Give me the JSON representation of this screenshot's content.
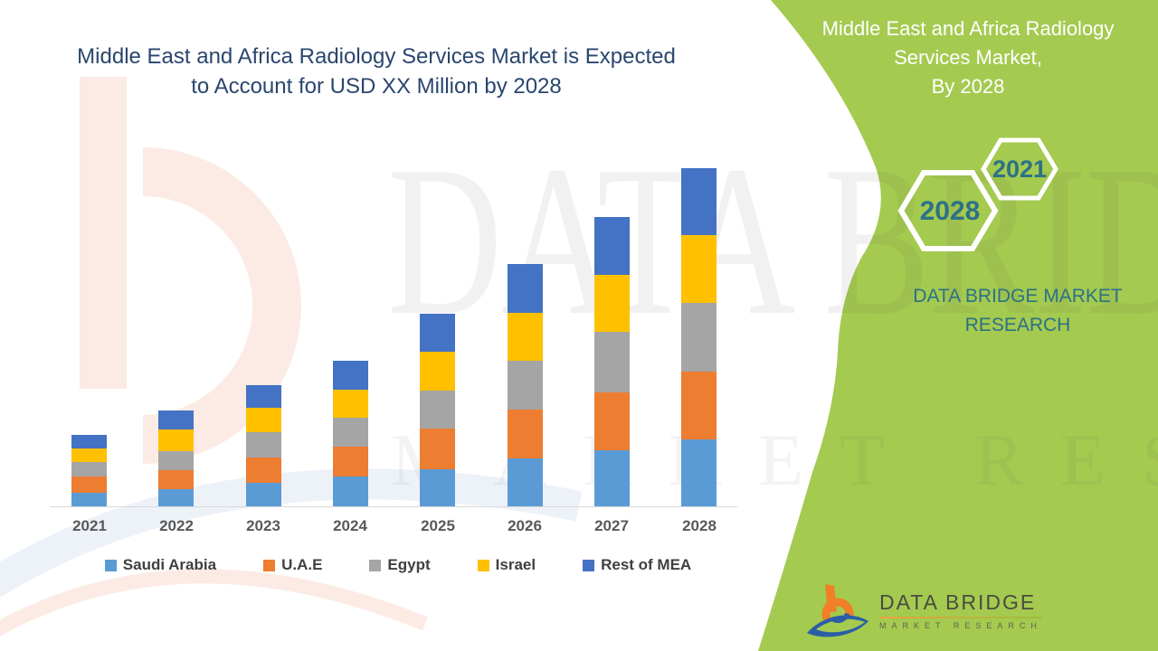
{
  "header": {
    "title_line1": "Middle East and Africa Radiology Services Market is Expected",
    "title_line2": "to Account for USD XX Million by 2028"
  },
  "side_panel": {
    "panel_color": "#A4CA50",
    "text_color": "#2C7186",
    "title_line1": "Middle East and Africa Radiology",
    "title_line2": "Services Market,",
    "title_line3": "By 2028",
    "hexagon_small_label": "2021",
    "hexagon_large_label": "2028",
    "brand_line1": "DATA BRIDGE MARKET",
    "brand_line2": "RESEARCH"
  },
  "watermark": {
    "line1": "DATA BRIDGE",
    "line2": "MARKET RESEARCH"
  },
  "logo": {
    "name": "DATA BRIDGE",
    "sub": "MARKET  RESEARCH"
  },
  "chart_data": {
    "type": "bar",
    "stacked": true,
    "title": "Middle East and Africa Radiology Services Market is Expected to Account for USD XX Million by 2028",
    "xlabel": "",
    "ylabel": "",
    "value_units": "relative units (USD Million values shown as XX, no numeric axis in figure)",
    "axis_visible": false,
    "grid": false,
    "legend_position": "bottom",
    "categories": [
      "2021",
      "2022",
      "2023",
      "2024",
      "2025",
      "2026",
      "2027",
      "2028"
    ],
    "series": [
      {
        "name": "Saudi Arabia",
        "color": "#5B9BD5",
        "values": [
          15,
          19,
          26,
          33,
          41,
          53,
          62,
          74
        ]
      },
      {
        "name": "U.A.E",
        "color": "#ED7D31",
        "values": [
          18,
          21,
          28,
          33,
          45,
          54,
          64,
          75
        ]
      },
      {
        "name": "Egypt",
        "color": "#A5A5A5",
        "values": [
          16,
          21,
          28,
          32,
          42,
          54,
          67,
          76
        ]
      },
      {
        "name": "Israel",
        "color": "#FFC000",
        "values": [
          15,
          24,
          27,
          31,
          43,
          53,
          63,
          75
        ]
      },
      {
        "name": "Rest of MEA",
        "color": "#4472C4",
        "values": [
          15,
          21,
          25,
          32,
          42,
          54,
          64,
          74
        ]
      }
    ],
    "stack_totals": [
      79,
      106,
      134,
      161,
      213,
      268,
      320,
      374
    ]
  }
}
